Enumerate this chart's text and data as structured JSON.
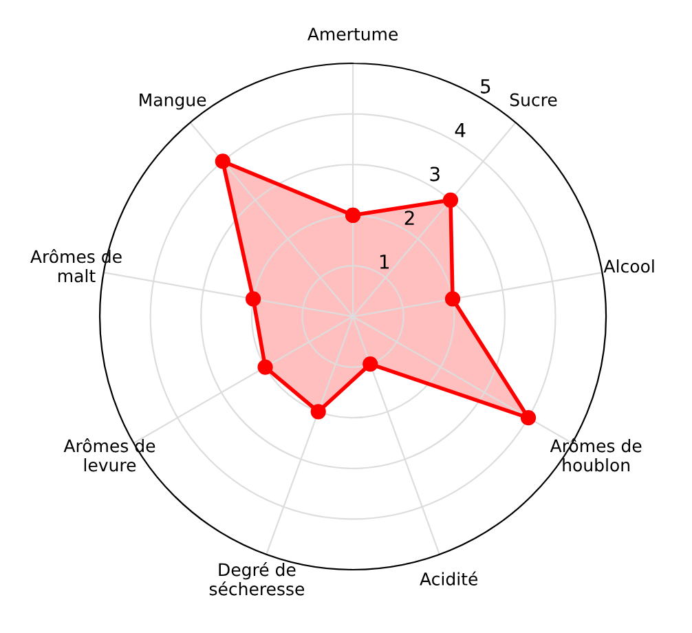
{
  "chart_data": {
    "type": "radar",
    "categories": [
      "Amertume",
      "Sucre",
      "Alcool",
      "Arômes de\nhoublon",
      "Acidité",
      "Degré de\nsécheresse",
      "Arômes de\nlevure",
      "Arômes de\nmalt",
      "Mangue"
    ],
    "series": [
      {
        "color": "#ff0000",
        "values": [
          2,
          3,
          2,
          4,
          1,
          2,
          2,
          2,
          4
        ]
      }
    ],
    "ylim": [
      0,
      5
    ],
    "yticks": [
      1,
      2,
      3,
      4,
      5
    ],
    "grid": true,
    "marker": "circle",
    "line_style": "solid"
  }
}
